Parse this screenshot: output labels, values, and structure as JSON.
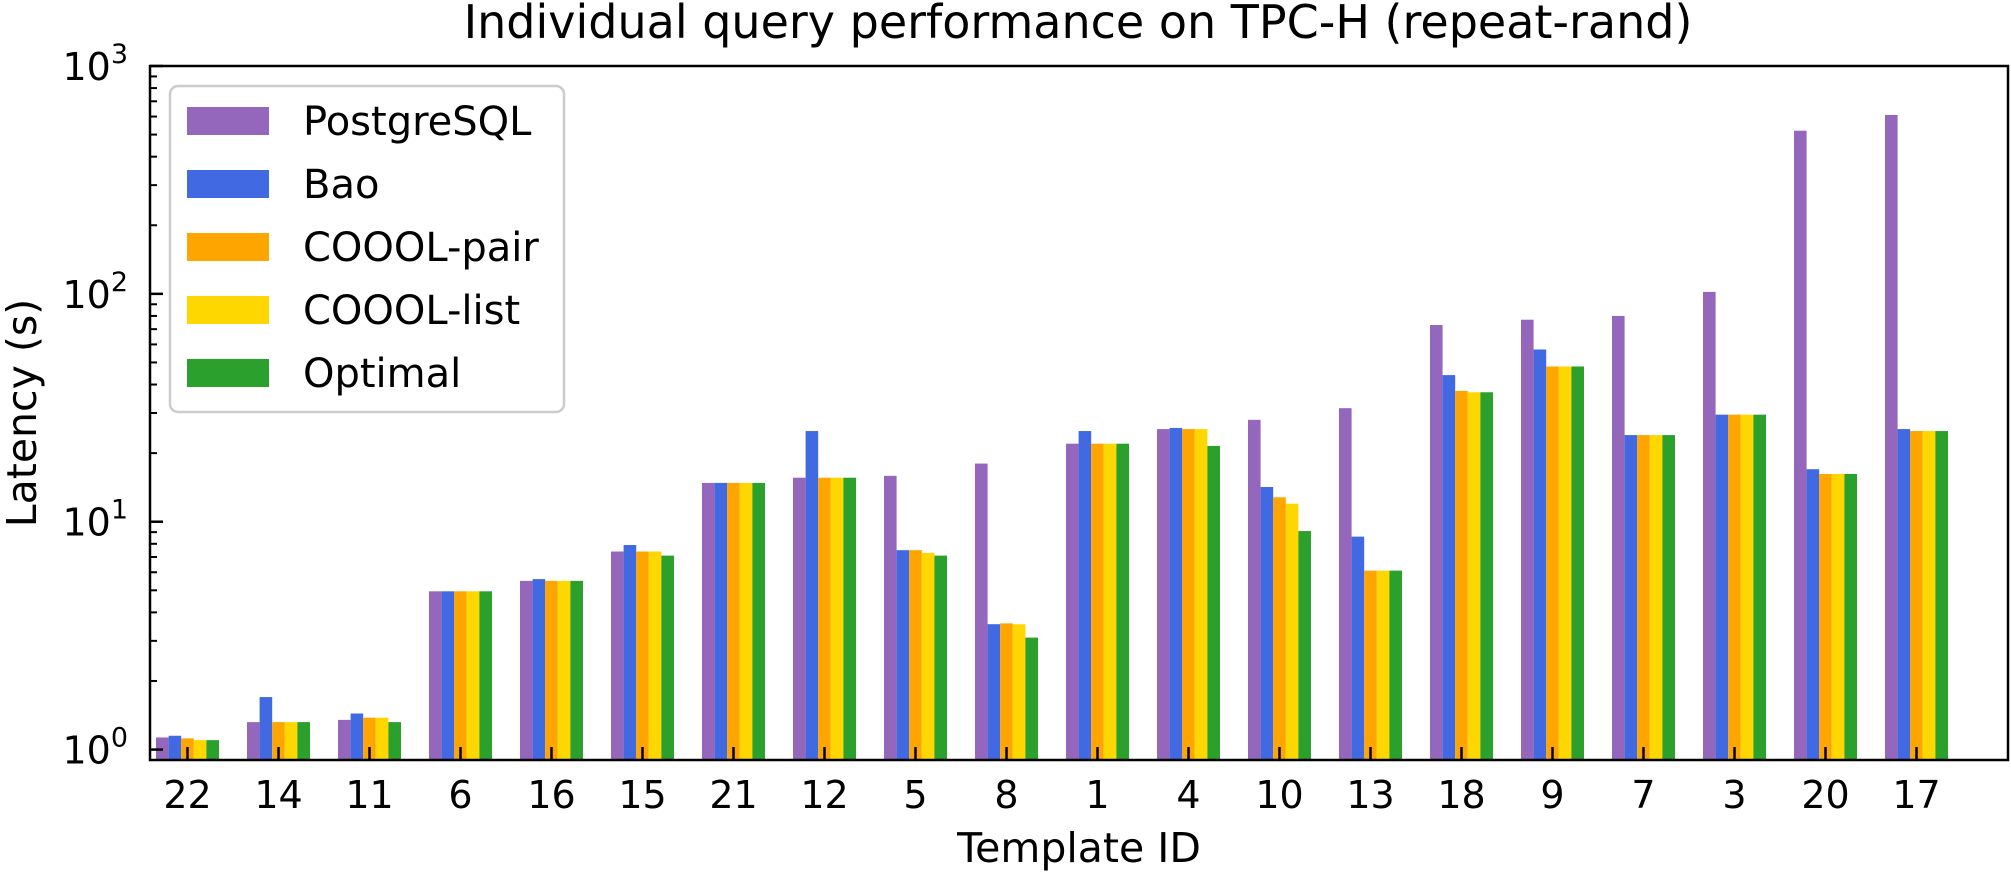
{
  "chart_data": {
    "type": "bar",
    "title": "Individual query performance on TPC-H (repeat-rand)",
    "xlabel": "Template ID",
    "ylabel": "Latency (s)",
    "yscale": "log",
    "ylim": [
      0.9,
      1000
    ],
    "y_ticks": [
      {
        "value": 1,
        "base": "10",
        "exp": "0"
      },
      {
        "value": 10,
        "base": "10",
        "exp": "1"
      },
      {
        "value": 100,
        "base": "10",
        "exp": "2"
      },
      {
        "value": 1000,
        "base": "10",
        "exp": "3"
      }
    ],
    "grid": false,
    "legend_position": "top-left",
    "categories": [
      "22",
      "14",
      "11",
      "6",
      "16",
      "15",
      "21",
      "12",
      "5",
      "8",
      "1",
      "4",
      "10",
      "13",
      "18",
      "9",
      "7",
      "3",
      "20",
      "17"
    ],
    "series": [
      {
        "name": "PostgreSQL",
        "color": "#9467bd",
        "values": [
          1.13,
          1.32,
          1.35,
          4.95,
          5.5,
          7.4,
          14.8,
          15.6,
          15.9,
          18.0,
          22.0,
          25.5,
          28.0,
          31.5,
          73.0,
          77.0,
          80.0,
          102.0,
          520.0,
          610.0
        ]
      },
      {
        "name": "Bao",
        "color": "#4169e1",
        "values": [
          1.15,
          1.7,
          1.44,
          4.95,
          5.6,
          7.9,
          14.8,
          25.0,
          7.5,
          3.55,
          25.0,
          25.8,
          14.2,
          8.6,
          44.0,
          57.0,
          24.0,
          29.5,
          17.0,
          25.5
        ]
      },
      {
        "name": "COOOL-pair",
        "color": "#ffa500",
        "values": [
          1.12,
          1.32,
          1.38,
          4.95,
          5.5,
          7.4,
          14.8,
          15.6,
          7.5,
          3.58,
          22.0,
          25.5,
          12.8,
          6.1,
          37.5,
          48.0,
          24.0,
          29.5,
          16.2,
          25.0
        ]
      },
      {
        "name": "COOOL-list",
        "color": "#ffd700",
        "values": [
          1.1,
          1.32,
          1.38,
          4.95,
          5.5,
          7.4,
          14.8,
          15.6,
          7.3,
          3.55,
          22.0,
          25.5,
          12.0,
          6.1,
          37.0,
          48.0,
          24.0,
          29.5,
          16.2,
          25.0
        ]
      },
      {
        "name": "Optimal",
        "color": "#2ca02c",
        "values": [
          1.1,
          1.32,
          1.32,
          4.95,
          5.5,
          7.1,
          14.8,
          15.6,
          7.1,
          3.1,
          22.0,
          21.5,
          9.1,
          6.1,
          37.0,
          48.0,
          24.0,
          29.5,
          16.2,
          25.0
        ]
      }
    ]
  }
}
